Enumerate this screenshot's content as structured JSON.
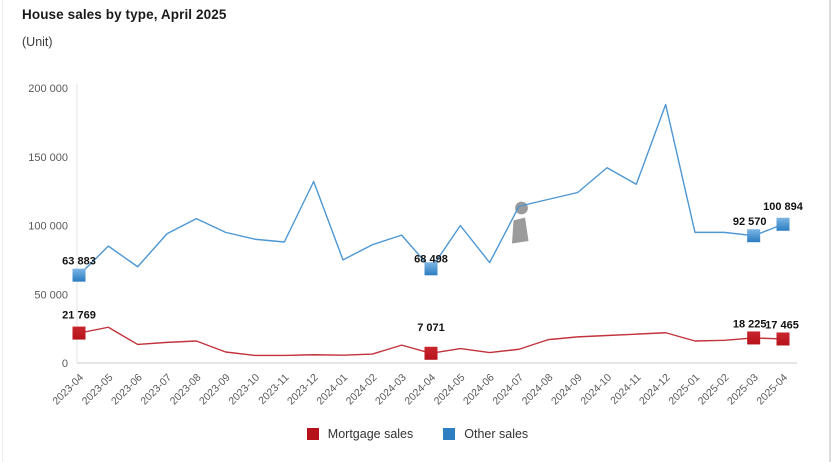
{
  "page": {
    "title": "House sales by type, April 2025",
    "unit_label": "(Unit)"
  },
  "chart_data": {
    "type": "line",
    "title": "House sales by type, April 2025",
    "ylabel": "(Unit)",
    "xlabel": "",
    "ylim": [
      0,
      200000
    ],
    "ytick_interval": 50000,
    "yticks": [
      "0",
      "50 000",
      "100 000",
      "150 000",
      "200 000"
    ],
    "grid": false,
    "legend_position": "bottom",
    "axis_color": "#d6d6d6",
    "tick_label_color": "#595959",
    "data_label_color": "#111111",
    "categories": [
      "2023-04",
      "2023-05",
      "2023-06",
      "2023-07",
      "2023-08",
      "2023-09",
      "2023-10",
      "2023-11",
      "2023-12",
      "2024-01",
      "2024-02",
      "2024-03",
      "2024-04",
      "2024-05",
      "2024-06",
      "2024-07",
      "2024-08",
      "2024-09",
      "2024-10",
      "2024-11",
      "2024-12",
      "2025-01",
      "2025-02",
      "2025-03",
      "2025-04"
    ],
    "series": [
      {
        "name": "Mortgage sales",
        "line_color": "#c2333b",
        "marker_color": "#b5121b",
        "values": [
          21769,
          26000,
          13500,
          15000,
          16000,
          8000,
          5500,
          5500,
          6000,
          5700,
          6500,
          13000,
          7071,
          10500,
          7600,
          10000,
          17000,
          19000,
          20000,
          21000,
          22000,
          16000,
          16500,
          18225,
          17465
        ]
      },
      {
        "name": "Other sales",
        "line_color": "#4d97d3",
        "marker_color": "#2b7cc1",
        "values": [
          63883,
          85000,
          70000,
          94000,
          105000,
          95000,
          90000,
          88000,
          132000,
          75000,
          86000,
          93000,
          68498,
          100000,
          73000,
          114000,
          119000,
          124000,
          142000,
          130000,
          188000,
          95000,
          95000,
          92570,
          100894
        ]
      }
    ],
    "labeled_points": [
      {
        "series": "Other sales",
        "category": "2023-04",
        "label": "63 883"
      },
      {
        "series": "Other sales",
        "category": "2024-04",
        "label": "68 498"
      },
      {
        "series": "Other sales",
        "category": "2025-03",
        "label": "92 570"
      },
      {
        "series": "Other sales",
        "category": "2025-04",
        "label": "100 894"
      },
      {
        "series": "Mortgage sales",
        "category": "2023-04",
        "label": "21 769"
      },
      {
        "series": "Mortgage sales",
        "category": "2024-04",
        "label": "7 071"
      },
      {
        "series": "Mortgage sales",
        "category": "2025-03",
        "label": "18 225"
      },
      {
        "series": "Mortgage sales",
        "category": "2025-04",
        "label": "17 465"
      }
    ],
    "annotation_icon": {
      "name": "info-icon",
      "category": "2024-07",
      "series": "Other sales",
      "color": "#9b9b9b"
    }
  },
  "legend": {
    "items": [
      {
        "label": "Mortgage sales",
        "color": "#b5121b"
      },
      {
        "label": "Other sales",
        "color": "#2e7fc1"
      }
    ]
  }
}
